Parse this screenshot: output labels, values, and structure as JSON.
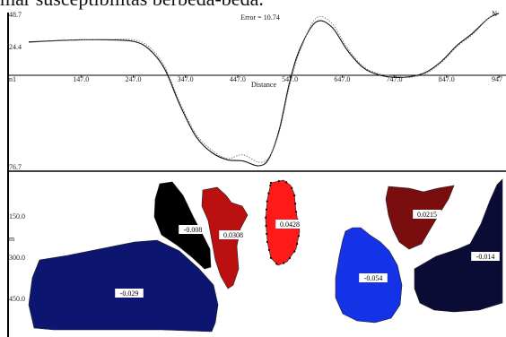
{
  "caption": "mar susceptibilitas berbeda-beda.",
  "chart_data": [
    {
      "type": "line",
      "title": "Error = 10.74",
      "xlabel": "Distance",
      "ylabel": "",
      "corner_label": "N",
      "x_ticks": [
        "147.0",
        "247.0",
        "347.0",
        "447.0",
        "547.0",
        "647.0",
        "747.0",
        "847.0",
        "947"
      ],
      "y_ticks": [
        "48.7",
        "24.4",
        "n1"
      ],
      "bottom_label": "76.7",
      "xlim": [
        47,
        947
      ],
      "ylim": [
        -76.7,
        48.7
      ],
      "series": [
        {
          "style": "solid",
          "x": [
            47,
            97,
            147,
            197,
            247,
            277,
            307,
            337,
            367,
            397,
            427,
            457,
            487,
            507,
            527,
            547,
            567,
            597,
            627,
            657,
            687,
            717,
            747,
            777,
            807,
            837,
            867,
            897,
            927,
            947
          ],
          "y": [
            24.8,
            25.8,
            26.5,
            26.5,
            25.3,
            19,
            3,
            -27,
            -52,
            -65,
            -71,
            -72,
            -76,
            -70,
            -46,
            -7,
            20,
            41,
            37,
            18,
            4,
            -2,
            -4,
            -3.5,
            0,
            9,
            22,
            32,
            44,
            48
          ]
        },
        {
          "style": "dotted",
          "x": [
            47,
            97,
            147,
            197,
            247,
            277,
            307,
            337,
            367,
            397,
            427,
            457,
            487,
            507,
            527,
            547,
            567,
            597,
            627,
            657,
            687,
            717,
            747,
            777,
            807,
            837,
            867,
            897,
            927,
            947
          ],
          "y": [
            24.3,
            25.6,
            26.3,
            26.8,
            26.5,
            21,
            5,
            -25,
            -50,
            -63,
            -70,
            -67,
            -73,
            -69,
            -48,
            -10,
            18,
            44,
            40,
            20,
            5,
            -1,
            -3,
            -4,
            -1,
            8,
            21,
            31,
            44,
            49
          ]
        }
      ]
    },
    {
      "type": "other",
      "y_ticks": [
        "150.0",
        "300.0",
        "450.0"
      ],
      "y_unit": "m",
      "bodies": [
        {
          "value": "-0.029",
          "color": "#0c1670"
        },
        {
          "value": "-0.008",
          "color": "#000000"
        },
        {
          "value": "0.0308",
          "color": "#bb1010"
        },
        {
          "value": "0.0428",
          "color": "#ff1a1a"
        },
        {
          "value": "-0.054",
          "color": "#1432e6"
        },
        {
          "value": "0.0215",
          "color": "#7a0d0d"
        },
        {
          "value": "-0.014",
          "color": "#0a0c36"
        }
      ]
    }
  ]
}
